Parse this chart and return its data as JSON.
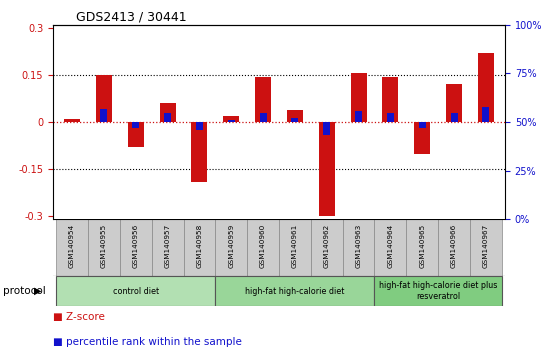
{
  "title": "GDS2413 / 30441",
  "samples": [
    "GSM140954",
    "GSM140955",
    "GSM140956",
    "GSM140957",
    "GSM140958",
    "GSM140959",
    "GSM140960",
    "GSM140961",
    "GSM140962",
    "GSM140963",
    "GSM140964",
    "GSM140965",
    "GSM140966",
    "GSM140967"
  ],
  "zscore": [
    0.01,
    0.15,
    -0.08,
    0.06,
    -0.19,
    0.02,
    0.145,
    0.04,
    -0.3,
    0.155,
    0.145,
    -0.1,
    0.12,
    0.22
  ],
  "percentile_rank_raw": [
    50,
    57,
    47,
    55,
    46,
    51,
    55,
    52,
    43,
    56,
    55,
    47,
    55,
    58
  ],
  "zscore_color": "#CC1111",
  "percentile_color": "#1111CC",
  "ylim": [
    -0.31,
    0.31
  ],
  "right_ylim": [
    0,
    100
  ],
  "right_yticks": [
    0,
    25,
    50,
    75,
    100
  ],
  "right_yticklabels": [
    "0%",
    "25%",
    "50%",
    "75%",
    "100%"
  ],
  "left_yticks": [
    -0.3,
    -0.15,
    0.0,
    0.15,
    0.3
  ],
  "left_yticklabels": [
    "-0.3",
    "-0.15",
    "0",
    "0.15",
    "0.3"
  ],
  "dotted_lines": [
    -0.15,
    0.15
  ],
  "groups": [
    {
      "label": "control diet",
      "start": 0,
      "end": 4,
      "color": "#b2e0b2"
    },
    {
      "label": "high-fat high-calorie diet",
      "start": 5,
      "end": 9,
      "color": "#99d699"
    },
    {
      "label": "high-fat high-calorie diet plus\nresveratrol",
      "start": 10,
      "end": 13,
      "color": "#80cc80"
    }
  ],
  "protocol_label": "protocol",
  "legend_zscore": "Z-score",
  "legend_percentile": "percentile rank within the sample",
  "bg_color": "#ffffff",
  "tick_label_color_left": "#CC1111",
  "tick_label_color_right": "#1111CC",
  "sample_box_color": "#cccccc",
  "group_border_color": "#555555"
}
